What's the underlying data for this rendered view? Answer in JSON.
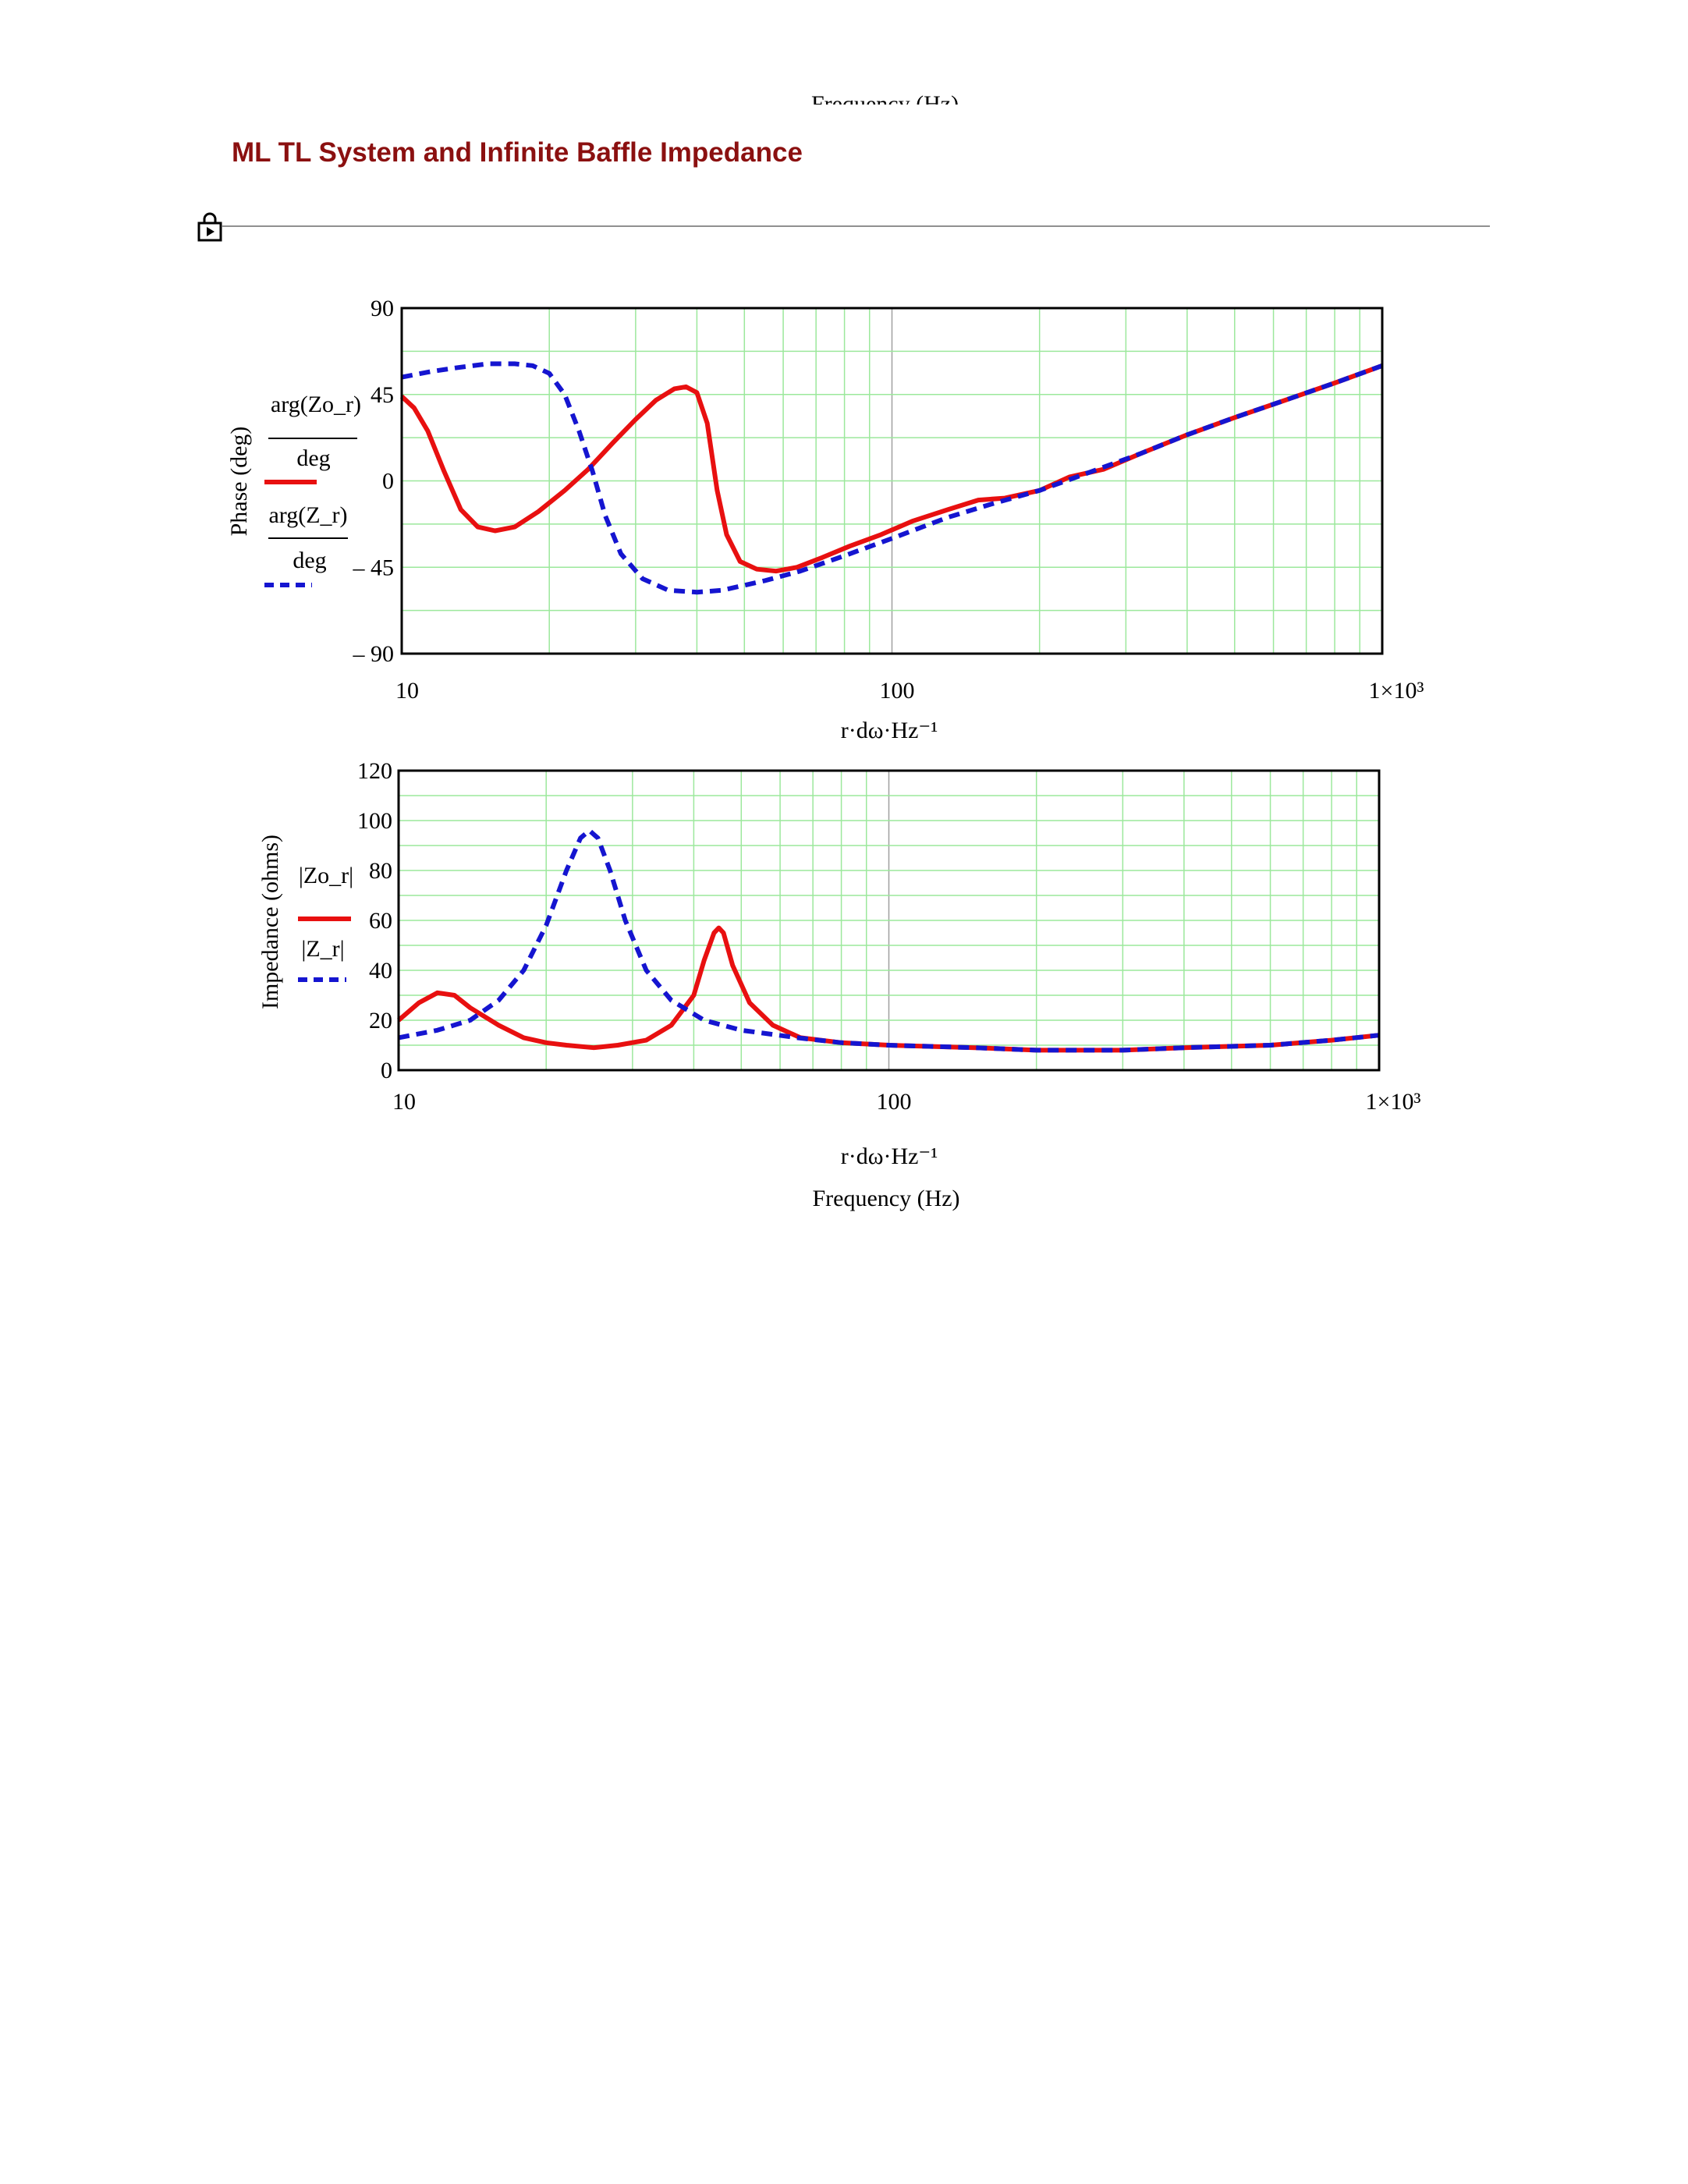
{
  "header": {
    "cut_label": "Frequency (Hz)",
    "section_title": "ML TL System and Infinite Baffle Impedance"
  },
  "colors": {
    "title": "#8b1010",
    "series_red": "#e81010",
    "series_blue": "#1515d0",
    "grid": "#9ce89c"
  },
  "icons": [
    "lock-icon"
  ],
  "chart_data": [
    {
      "type": "line",
      "x_scale": "log",
      "xlim": [
        10,
        1000
      ],
      "ylim": [
        -90,
        90
      ],
      "x_tick_labels": [
        "10",
        "100",
        "1×10³"
      ],
      "y_tick_labels": [
        "90",
        "45",
        "0",
        "– 45",
        "– 90"
      ],
      "y_ticks": [
        90,
        45,
        0,
        -45,
        -90
      ],
      "ylabel": "Phase (deg)",
      "xlabel_partial": "r·dω·Hz⁻¹",
      "grid": true,
      "series": [
        {
          "legend_num": "arg(Zo_r)",
          "legend_den": "deg",
          "style": "solid",
          "color": "#e81010",
          "points": [
            [
              10,
              44
            ],
            [
              10.6,
              38
            ],
            [
              11.3,
              26
            ],
            [
              12.2,
              5
            ],
            [
              13.2,
              -15
            ],
            [
              14.3,
              -24
            ],
            [
              15.5,
              -26
            ],
            [
              17,
              -24
            ],
            [
              19,
              -16
            ],
            [
              21.5,
              -5
            ],
            [
              24,
              6
            ],
            [
              27,
              20
            ],
            [
              30,
              32
            ],
            [
              33,
              42
            ],
            [
              36,
              48
            ],
            [
              38,
              49
            ],
            [
              40,
              46
            ],
            [
              42,
              30
            ],
            [
              44,
              -5
            ],
            [
              46,
              -28
            ],
            [
              49,
              -42
            ],
            [
              53,
              -46
            ],
            [
              58,
              -47
            ],
            [
              64,
              -45
            ],
            [
              72,
              -40
            ],
            [
              82,
              -34
            ],
            [
              95,
              -28
            ],
            [
              110,
              -21
            ],
            [
              130,
              -15
            ],
            [
              150,
              -10
            ],
            [
              170,
              -9
            ],
            [
              200,
              -5
            ],
            [
              230,
              2
            ],
            [
              270,
              6
            ],
            [
              320,
              14
            ],
            [
              400,
              24
            ],
            [
              500,
              33
            ],
            [
              650,
              43
            ],
            [
              800,
              51
            ],
            [
              1000,
              60
            ]
          ]
        },
        {
          "legend_num": "arg(Z_r)",
          "legend_den": "deg",
          "style": "dashed",
          "color": "#1515d0",
          "points": [
            [
              10,
              54
            ],
            [
              11.5,
              57
            ],
            [
              13,
              59
            ],
            [
              15,
              61
            ],
            [
              17,
              61
            ],
            [
              18.5,
              60
            ],
            [
              20,
              56
            ],
            [
              21.5,
              45
            ],
            [
              23,
              26
            ],
            [
              24.5,
              5
            ],
            [
              26,
              -18
            ],
            [
              28,
              -38
            ],
            [
              31,
              -51
            ],
            [
              35,
              -57
            ],
            [
              40,
              -58
            ],
            [
              45,
              -57
            ],
            [
              55,
              -52
            ],
            [
              65,
              -47
            ],
            [
              80,
              -39
            ],
            [
              100,
              -30
            ],
            [
              130,
              -19
            ],
            [
              160,
              -12
            ],
            [
              200,
              -5
            ],
            [
              250,
              4
            ],
            [
              320,
              14
            ],
            [
              400,
              24
            ],
            [
              500,
              33
            ],
            [
              650,
              43
            ],
            [
              800,
              51
            ],
            [
              1000,
              60
            ]
          ]
        }
      ]
    },
    {
      "type": "line",
      "x_scale": "log",
      "xlim": [
        10,
        1000
      ],
      "ylim": [
        0,
        120
      ],
      "x_tick_labels": [
        "10",
        "100",
        "1×10³"
      ],
      "y_tick_labels": [
        "120",
        "100",
        "80",
        "60",
        "40",
        "20",
        "0"
      ],
      "y_ticks": [
        120,
        100,
        80,
        60,
        40,
        20,
        0
      ],
      "ylabel": "Impedance (ohms)",
      "xlabel": "r·dω·Hz⁻¹",
      "xlabel_caption": "Frequency (Hz)",
      "grid": true,
      "series": [
        {
          "legend": "|Zo_r|",
          "style": "solid",
          "color": "#e81010",
          "points": [
            [
              10,
              20
            ],
            [
              11,
              27
            ],
            [
              12,
              31
            ],
            [
              13,
              30
            ],
            [
              14,
              25
            ],
            [
              16,
              18
            ],
            [
              18,
              13
            ],
            [
              20,
              11
            ],
            [
              22,
              10
            ],
            [
              25,
              9
            ],
            [
              28,
              10
            ],
            [
              32,
              12
            ],
            [
              36,
              18
            ],
            [
              40,
              30
            ],
            [
              42,
              44
            ],
            [
              44,
              55
            ],
            [
              45,
              57
            ],
            [
              46,
              55
            ],
            [
              48,
              42
            ],
            [
              52,
              27
            ],
            [
              58,
              18
            ],
            [
              66,
              13
            ],
            [
              80,
              11
            ],
            [
              100,
              10
            ],
            [
              150,
              9
            ],
            [
              200,
              8
            ],
            [
              300,
              8
            ],
            [
              400,
              9
            ],
            [
              600,
              10
            ],
            [
              800,
              12
            ],
            [
              1000,
              14
            ]
          ]
        },
        {
          "legend": "|Z_r|",
          "style": "dashed",
          "color": "#1515d0",
          "points": [
            [
              10,
              13
            ],
            [
              12,
              16
            ],
            [
              14,
              20
            ],
            [
              16,
              28
            ],
            [
              18,
              40
            ],
            [
              20,
              58
            ],
            [
              22,
              80
            ],
            [
              23.5,
              93
            ],
            [
              24.5,
              96
            ],
            [
              25.5,
              93
            ],
            [
              27,
              80
            ],
            [
              29,
              60
            ],
            [
              32,
              40
            ],
            [
              36,
              28
            ],
            [
              42,
              20
            ],
            [
              50,
              16
            ],
            [
              65,
              13
            ],
            [
              80,
              11
            ],
            [
              100,
              10
            ],
            [
              150,
              9
            ],
            [
              200,
              8
            ],
            [
              300,
              8
            ],
            [
              400,
              9
            ],
            [
              600,
              10
            ],
            [
              800,
              12
            ],
            [
              1000,
              14
            ]
          ]
        }
      ]
    }
  ]
}
